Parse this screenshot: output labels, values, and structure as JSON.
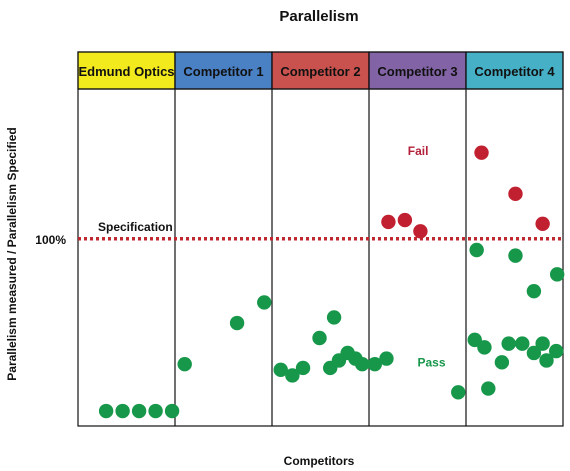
{
  "chart_data": {
    "type": "scatter",
    "title": "Parallelism",
    "xlabel": "Competitors",
    "ylabel": "Parallelism measured / Parallelism Specified",
    "ylim": [
      0,
      1.8
    ],
    "reference_line": {
      "value": 1.0,
      "tick_label": "100%",
      "label": "Specification",
      "color": "#c0282f"
    },
    "annotations": [
      {
        "text": "Fail",
        "color": "#b3203a",
        "group": "Competitor 3",
        "pos": 0.4,
        "y": 1.47
      },
      {
        "text": "Pass",
        "color": "#17974a",
        "group": "Competitor 3",
        "pos": 0.5,
        "y": 0.34
      }
    ],
    "groups": [
      {
        "name": "Edmund Optics",
        "header_color": "#f2ea1c",
        "points": [
          {
            "pos": 0.29,
            "y": 0.08,
            "status": "pass"
          },
          {
            "pos": 0.46,
            "y": 0.08,
            "status": "pass"
          },
          {
            "pos": 0.63,
            "y": 0.08,
            "status": "pass"
          },
          {
            "pos": 0.8,
            "y": 0.08,
            "status": "pass"
          },
          {
            "pos": 0.97,
            "y": 0.08,
            "status": "pass"
          }
        ]
      },
      {
        "name": "Competitor 1",
        "header_color": "#4a80c4",
        "points": [
          {
            "pos": 0.1,
            "y": 0.33,
            "status": "pass"
          },
          {
            "pos": 0.64,
            "y": 0.55,
            "status": "pass"
          },
          {
            "pos": 0.92,
            "y": 0.66,
            "status": "pass"
          }
        ]
      },
      {
        "name": "Competitor 2",
        "header_color": "#c9524e",
        "points": [
          {
            "pos": 0.09,
            "y": 0.3,
            "status": "pass"
          },
          {
            "pos": 0.21,
            "y": 0.27,
            "status": "pass"
          },
          {
            "pos": 0.32,
            "y": 0.31,
            "status": "pass"
          },
          {
            "pos": 0.49,
            "y": 0.47,
            "status": "pass"
          },
          {
            "pos": 0.6,
            "y": 0.31,
            "status": "pass"
          },
          {
            "pos": 0.64,
            "y": 0.58,
            "status": "pass"
          },
          {
            "pos": 0.69,
            "y": 0.35,
            "status": "pass"
          },
          {
            "pos": 0.78,
            "y": 0.39,
            "status": "pass"
          },
          {
            "pos": 0.86,
            "y": 0.36,
            "status": "pass"
          },
          {
            "pos": 0.93,
            "y": 0.33,
            "status": "pass"
          }
        ]
      },
      {
        "name": "Competitor 3",
        "header_color": "#8264a6",
        "points": [
          {
            "pos": 0.06,
            "y": 0.33,
            "status": "pass"
          },
          {
            "pos": 0.2,
            "y": 1.09,
            "status": "fail"
          },
          {
            "pos": 0.37,
            "y": 1.1,
            "status": "fail"
          },
          {
            "pos": 0.18,
            "y": 0.36,
            "status": "pass"
          },
          {
            "pos": 0.53,
            "y": 1.04,
            "status": "fail"
          },
          {
            "pos": 0.92,
            "y": 0.18,
            "status": "pass"
          }
        ]
      },
      {
        "name": "Competitor 4",
        "header_color": "#46b0c6",
        "points": [
          {
            "pos": 0.11,
            "y": 0.94,
            "status": "pass"
          },
          {
            "pos": 0.16,
            "y": 1.46,
            "status": "fail"
          },
          {
            "pos": 0.09,
            "y": 0.46,
            "status": "pass"
          },
          {
            "pos": 0.19,
            "y": 0.42,
            "status": "pass"
          },
          {
            "pos": 0.23,
            "y": 0.2,
            "status": "pass"
          },
          {
            "pos": 0.37,
            "y": 0.34,
            "status": "pass"
          },
          {
            "pos": 0.44,
            "y": 0.44,
            "status": "pass"
          },
          {
            "pos": 0.51,
            "y": 0.91,
            "status": "pass"
          },
          {
            "pos": 0.51,
            "y": 1.24,
            "status": "fail"
          },
          {
            "pos": 0.58,
            "y": 0.44,
            "status": "pass"
          },
          {
            "pos": 0.7,
            "y": 0.72,
            "status": "pass"
          },
          {
            "pos": 0.7,
            "y": 0.39,
            "status": "pass"
          },
          {
            "pos": 0.79,
            "y": 1.08,
            "status": "fail"
          },
          {
            "pos": 0.79,
            "y": 0.44,
            "status": "pass"
          },
          {
            "pos": 0.83,
            "y": 0.35,
            "status": "pass"
          },
          {
            "pos": 0.93,
            "y": 0.4,
            "status": "pass"
          },
          {
            "pos": 0.94,
            "y": 0.81,
            "status": "pass"
          }
        ]
      }
    ],
    "colors": {
      "pass": "#17974a",
      "fail": "#c0202f",
      "frame": "#111111"
    }
  }
}
